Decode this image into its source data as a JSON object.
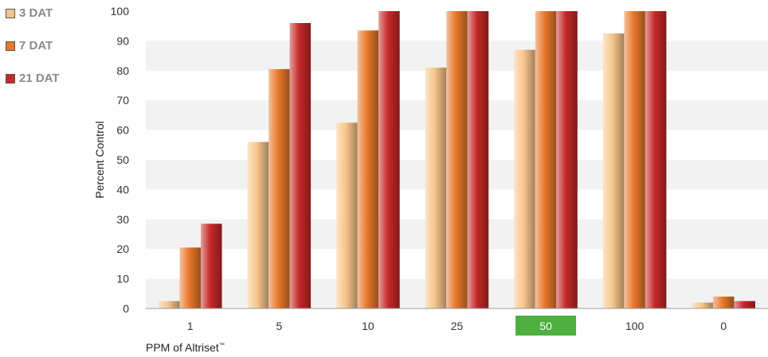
{
  "chart_data": {
    "type": "bar",
    "title": "",
    "ylabel": "Percent Control",
    "xlabel": "PPM of Altriset",
    "xlabel_mark": "™",
    "ylim": [
      0,
      100
    ],
    "yticks": [
      0,
      10,
      20,
      30,
      40,
      50,
      60,
      70,
      80,
      90,
      100
    ],
    "grid": "horizontal alternating bands",
    "legend_position": "top-left",
    "categories": [
      "1",
      "5",
      "10",
      "25",
      "50",
      "100",
      "0"
    ],
    "highlighted_category": "50",
    "highlight_color": "#4caf3f",
    "series": [
      {
        "name": "3 DAT",
        "values": [
          2.5,
          56,
          62.5,
          81,
          87,
          92.5,
          2
        ],
        "color": "#f7c58a"
      },
      {
        "name": "7 DAT",
        "values": [
          20.5,
          80.5,
          93.5,
          100,
          100,
          100,
          4
        ],
        "color": "#e8782b"
      },
      {
        "name": "21 DAT",
        "values": [
          28.5,
          96,
          100,
          100,
          100,
          100,
          2.5
        ],
        "color": "#c62828"
      }
    ]
  }
}
